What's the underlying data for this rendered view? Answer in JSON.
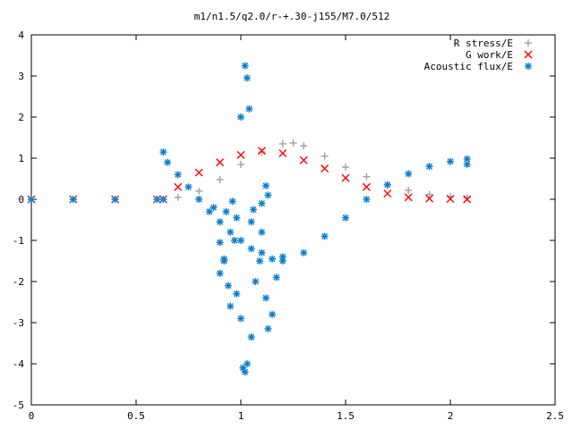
{
  "chart_data": {
    "type": "scatter",
    "title": "m1/n1.5/q2.0/r-+.30-j155/M7.0/512",
    "xlabel": "",
    "ylabel": "",
    "xlim": [
      0,
      2.5
    ],
    "ylim": [
      -5,
      4
    ],
    "x_ticks": [
      "0",
      "0.5",
      "1",
      "1.5",
      "2",
      "2.5"
    ],
    "y_ticks": [
      "-5",
      "-4",
      "-3",
      "-2",
      "-1",
      "0",
      "1",
      "2",
      "3",
      "4"
    ],
    "grid": false,
    "legend_position": "top-right",
    "series": [
      {
        "name": "R stress/E",
        "marker": "+",
        "color": "#a0a0a0",
        "points": [
          [
            0,
            0
          ],
          [
            0.2,
            0
          ],
          [
            0.4,
            0
          ],
          [
            0.6,
            0
          ],
          [
            0.63,
            0
          ],
          [
            0.7,
            0.05
          ],
          [
            0.8,
            0.2
          ],
          [
            0.9,
            0.48
          ],
          [
            1.0,
            0.85
          ],
          [
            1.1,
            1.15
          ],
          [
            1.2,
            1.35
          ],
          [
            1.25,
            1.37
          ],
          [
            1.3,
            1.3
          ],
          [
            1.4,
            1.05
          ],
          [
            1.5,
            0.78
          ],
          [
            1.6,
            0.55
          ],
          [
            1.7,
            0.36
          ],
          [
            1.8,
            0.22
          ],
          [
            1.9,
            0.12
          ],
          [
            2.0,
            0.07
          ],
          [
            2.08,
            0.04
          ]
        ]
      },
      {
        "name": "G work/E",
        "marker": "x",
        "color": "#ff0000",
        "points": [
          [
            0,
            0
          ],
          [
            0.2,
            0
          ],
          [
            0.4,
            0
          ],
          [
            0.6,
            0
          ],
          [
            0.63,
            0
          ],
          [
            0.7,
            0.3
          ],
          [
            0.8,
            0.65
          ],
          [
            0.9,
            0.9
          ],
          [
            1.0,
            1.08
          ],
          [
            1.1,
            1.18
          ],
          [
            1.2,
            1.12
          ],
          [
            1.3,
            0.95
          ],
          [
            1.4,
            0.75
          ],
          [
            1.5,
            0.52
          ],
          [
            1.6,
            0.3
          ],
          [
            1.7,
            0.14
          ],
          [
            1.8,
            0.05
          ],
          [
            1.9,
            0.02
          ],
          [
            2.0,
            0.01
          ],
          [
            2.08,
            0.0
          ]
        ]
      },
      {
        "name": "Acoustic flux/E",
        "marker": "*",
        "color": "#0a7ecf",
        "points": [
          [
            0,
            0
          ],
          [
            0.2,
            0
          ],
          [
            0.4,
            0
          ],
          [
            0.6,
            0
          ],
          [
            0.63,
            0
          ],
          [
            0.63,
            1.15
          ],
          [
            0.65,
            0.9
          ],
          [
            0.7,
            0.6
          ],
          [
            0.75,
            0.3
          ],
          [
            0.8,
            0.0
          ],
          [
            0.85,
            -0.3
          ],
          [
            0.9,
            -0.55
          ],
          [
            0.95,
            -0.8
          ],
          [
            1.0,
            -1.0
          ],
          [
            1.05,
            -1.2
          ],
          [
            1.1,
            -1.3
          ],
          [
            1.15,
            -1.45
          ],
          [
            1.2,
            -1.5
          ],
          [
            1.3,
            -1.3
          ],
          [
            1.4,
            -0.9
          ],
          [
            1.5,
            -0.45
          ],
          [
            1.6,
            0.0
          ],
          [
            1.7,
            0.35
          ],
          [
            1.8,
            0.62
          ],
          [
            1.9,
            0.8
          ],
          [
            2.0,
            0.92
          ],
          [
            2.08,
            0.98
          ],
          [
            2.08,
            0.85
          ],
          [
            0.87,
            -0.2
          ],
          [
            0.9,
            -1.05
          ],
          [
            0.92,
            -1.5
          ],
          [
            0.94,
            -2.1
          ],
          [
            0.95,
            -2.6
          ],
          [
            0.97,
            -1.0
          ],
          [
            0.98,
            -2.3
          ],
          [
            1.0,
            -2.9
          ],
          [
            1.0,
            2.0
          ],
          [
            1.02,
            3.25
          ],
          [
            1.03,
            2.95
          ],
          [
            1.04,
            2.2
          ],
          [
            1.01,
            -4.1
          ],
          [
            1.02,
            -4.2
          ],
          [
            1.03,
            -4.0
          ],
          [
            1.05,
            -3.35
          ],
          [
            1.07,
            -2.0
          ],
          [
            1.09,
            -1.5
          ],
          [
            1.1,
            -0.8
          ],
          [
            1.12,
            -2.4
          ],
          [
            1.13,
            -3.15
          ],
          [
            1.15,
            -2.8
          ],
          [
            1.17,
            -1.9
          ],
          [
            1.2,
            -1.4
          ],
          [
            1.1,
            -0.1
          ],
          [
            1.12,
            0.33
          ],
          [
            1.13,
            0.1
          ],
          [
            1.05,
            -0.55
          ],
          [
            1.06,
            -0.25
          ],
          [
            0.98,
            -0.45
          ],
          [
            0.96,
            -0.05
          ],
          [
            0.93,
            -0.3
          ],
          [
            0.9,
            -1.8
          ],
          [
            0.92,
            -1.45
          ]
        ]
      }
    ]
  }
}
